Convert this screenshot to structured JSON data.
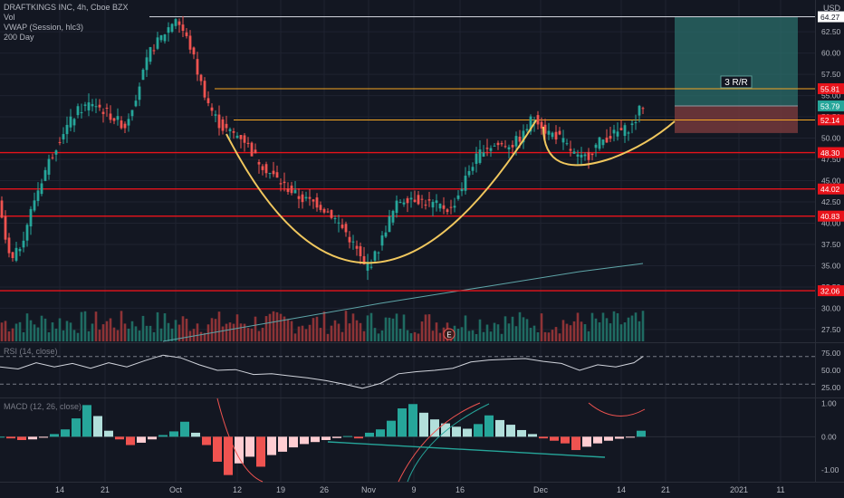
{
  "legend": {
    "title": "DRAFTKINGS INC, 4h, Cboe BZX",
    "vol": "Vol",
    "vwap": "VWAP (Session, hlc3)",
    "ma": "200 Day"
  },
  "currency": "USD",
  "rsi_label": "RSI (14, close)",
  "macd_label": "MACD (12, 26, close)",
  "rr_label": "3 R/R",
  "earnings_marker": "E",
  "colors": {
    "background": "#131722",
    "up": "#26a69a",
    "down": "#ef5350",
    "level_line": "#e8131b",
    "cup_curve": "#f0c75e",
    "orange_line": "#f5a623",
    "ma_line": "#5ea5a8",
    "rsi_line": "#d1d4dc",
    "target_zone": "#2b6e6a",
    "stop_zone": "#7a3b3d"
  },
  "chart_data": {
    "type": "candlestick",
    "price_axis": {
      "ticks": [
        "62.50",
        "60.00",
        "57.50",
        "55.00",
        "52.50",
        "50.00",
        "47.50",
        "45.00",
        "42.50",
        "40.00",
        "37.50",
        "35.00",
        "32.50",
        "30.00",
        "27.50"
      ],
      "range": [
        26.0,
        65.6
      ]
    },
    "price_labels": [
      {
        "text": "64.27",
        "value": 64.27,
        "color": "#ffffff",
        "text_color": "#131722"
      },
      {
        "text": "55.81",
        "value": 55.81,
        "color": "#e8131b",
        "text_color": "#ffffff"
      },
      {
        "text": "53.79",
        "value": 53.79,
        "color": "#26a69a",
        "text_color": "#ffffff"
      },
      {
        "text": "52.14",
        "value": 52.14,
        "color": "#e8131b",
        "text_color": "#ffffff"
      },
      {
        "text": "48.30",
        "value": 48.3,
        "color": "#e8131b",
        "text_color": "#ffffff"
      },
      {
        "text": "44.02",
        "value": 44.02,
        "color": "#e8131b",
        "text_color": "#ffffff"
      },
      {
        "text": "40.83",
        "value": 40.83,
        "color": "#e8131b",
        "text_color": "#ffffff"
      },
      {
        "text": "32.06",
        "value": 32.06,
        "color": "#e8131b",
        "text_color": "#ffffff"
      }
    ],
    "horizontal_levels": [
      48.3,
      44.02,
      40.83,
      32.06
    ],
    "x_axis_labels": [
      "14",
      "21",
      "Oct",
      "12",
      "19",
      "26",
      "Nov",
      "9",
      "16",
      "Dec",
      "14",
      "21",
      "2021",
      "11"
    ],
    "waypoints": [
      [
        0,
        42.5
      ],
      [
        8,
        38.0
      ],
      [
        14,
        35.2
      ],
      [
        26,
        37.8
      ],
      [
        40,
        42.8
      ],
      [
        54,
        46.8
      ],
      [
        70,
        50.5
      ],
      [
        88,
        53.2
      ],
      [
        104,
        54.2
      ],
      [
        122,
        52.8
      ],
      [
        140,
        51.4
      ],
      [
        152,
        55.0
      ],
      [
        168,
        60.2
      ],
      [
        184,
        62.4
      ],
      [
        196,
        64.2
      ],
      [
        206,
        62.2
      ],
      [
        214,
        60.2
      ],
      [
        222,
        57.0
      ],
      [
        234,
        53.6
      ],
      [
        246,
        51.3
      ],
      [
        258,
        50.6
      ],
      [
        270,
        50.1
      ],
      [
        282,
        48.0
      ],
      [
        298,
        46.1
      ],
      [
        316,
        44.4
      ],
      [
        334,
        42.9
      ],
      [
        352,
        42.3
      ],
      [
        368,
        41.0
      ],
      [
        384,
        38.9
      ],
      [
        396,
        36.8
      ],
      [
        404,
        34.9
      ],
      [
        412,
        35.4
      ],
      [
        420,
        37.0
      ],
      [
        430,
        40.0
      ],
      [
        442,
        42.6
      ],
      [
        456,
        43.1
      ],
      [
        470,
        42.5
      ],
      [
        488,
        42.0
      ],
      [
        500,
        41.6
      ],
      [
        510,
        43.8
      ],
      [
        522,
        46.7
      ],
      [
        536,
        48.9
      ],
      [
        552,
        49.2
      ],
      [
        568,
        49.3
      ],
      [
        580,
        50.4
      ],
      [
        588,
        52.1
      ],
      [
        596,
        52.2
      ],
      [
        604,
        50.9
      ],
      [
        618,
        50.2
      ],
      [
        632,
        48.6
      ],
      [
        642,
        47.4
      ],
      [
        652,
        48.0
      ],
      [
        664,
        49.6
      ],
      [
        678,
        50.4
      ],
      [
        692,
        51.0
      ],
      [
        702,
        51.6
      ],
      [
        710,
        53.8
      ]
    ],
    "volume": {
      "axis_ticks": [],
      "highlight": [
        {
          "x": 320,
          "value": 48
        },
        {
          "x": 496,
          "value": 34
        }
      ]
    },
    "rsi": {
      "ticks": [
        "75.00",
        "50.00",
        "25.00"
      ],
      "range": [
        12,
        88
      ],
      "levels": [
        70,
        30
      ],
      "values": [
        [
          0,
          55
        ],
        [
          20,
          52
        ],
        [
          40,
          61
        ],
        [
          60,
          55
        ],
        [
          80,
          60
        ],
        [
          100,
          53
        ],
        [
          120,
          61
        ],
        [
          140,
          55
        ],
        [
          160,
          64
        ],
        [
          180,
          72
        ],
        [
          200,
          68
        ],
        [
          220,
          58
        ],
        [
          240,
          50
        ],
        [
          260,
          51
        ],
        [
          280,
          44
        ],
        [
          300,
          45
        ],
        [
          320,
          42
        ],
        [
          340,
          39
        ],
        [
          360,
          35
        ],
        [
          380,
          30
        ],
        [
          400,
          24
        ],
        [
          420,
          31
        ],
        [
          440,
          45
        ],
        [
          460,
          48
        ],
        [
          480,
          50
        ],
        [
          500,
          53
        ],
        [
          520,
          62
        ],
        [
          540,
          65
        ],
        [
          560,
          66
        ],
        [
          580,
          67
        ],
        [
          600,
          63
        ],
        [
          620,
          60
        ],
        [
          640,
          50
        ],
        [
          660,
          58
        ],
        [
          680,
          55
        ],
        [
          700,
          61
        ],
        [
          710,
          70
        ]
      ]
    },
    "macd": {
      "ticks": [
        "1.00",
        "0.00",
        "-1.00"
      ],
      "range": [
        -1.35,
        1.15
      ],
      "histogram": [
        [
          0,
          0.0
        ],
        [
          12,
          -0.05
        ],
        [
          24,
          -0.1
        ],
        [
          36,
          -0.08
        ],
        [
          48,
          -0.03
        ],
        [
          60,
          0.08
        ],
        [
          72,
          0.22
        ],
        [
          84,
          0.55
        ],
        [
          96,
          0.95
        ],
        [
          108,
          0.62
        ],
        [
          120,
          0.18
        ],
        [
          132,
          -0.08
        ],
        [
          144,
          -0.25
        ],
        [
          156,
          -0.18
        ],
        [
          168,
          -0.08
        ],
        [
          180,
          0.05
        ],
        [
          192,
          0.16
        ],
        [
          204,
          0.45
        ],
        [
          216,
          0.12
        ],
        [
          228,
          -0.25
        ],
        [
          240,
          -0.75
        ],
        [
          252,
          -1.15
        ],
        [
          264,
          -0.8
        ],
        [
          276,
          -0.6
        ],
        [
          288,
          -0.9
        ],
        [
          300,
          -0.55
        ],
        [
          312,
          -0.45
        ],
        [
          324,
          -0.32
        ],
        [
          336,
          -0.22
        ],
        [
          348,
          -0.16
        ],
        [
          360,
          -0.1
        ],
        [
          372,
          -0.04
        ],
        [
          384,
          0.02
        ],
        [
          396,
          -0.05
        ],
        [
          408,
          0.12
        ],
        [
          420,
          0.22
        ],
        [
          432,
          0.48
        ],
        [
          444,
          0.85
        ],
        [
          456,
          0.98
        ],
        [
          468,
          0.72
        ],
        [
          480,
          0.52
        ],
        [
          492,
          0.4
        ],
        [
          504,
          0.3
        ],
        [
          516,
          0.24
        ],
        [
          528,
          0.38
        ],
        [
          540,
          0.64
        ],
        [
          552,
          0.5
        ],
        [
          564,
          0.36
        ],
        [
          576,
          0.2
        ],
        [
          588,
          0.08
        ],
        [
          600,
          -0.05
        ],
        [
          612,
          -0.12
        ],
        [
          624,
          -0.2
        ],
        [
          636,
          -0.4
        ],
        [
          648,
          -0.3
        ],
        [
          660,
          -0.2
        ],
        [
          672,
          -0.12
        ],
        [
          684,
          -0.06
        ],
        [
          696,
          -0.02
        ],
        [
          708,
          0.18
        ]
      ]
    }
  }
}
